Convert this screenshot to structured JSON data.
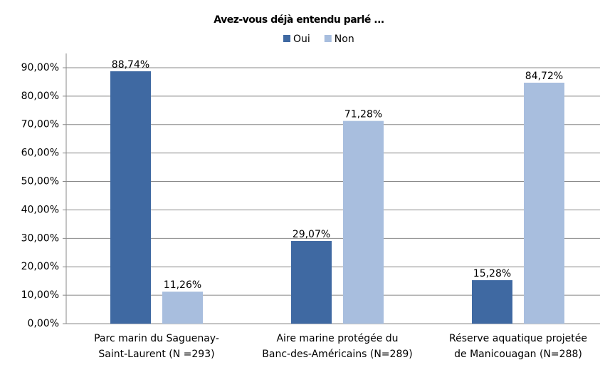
{
  "chart_data": {
    "type": "bar",
    "title": "Avez-vous déjà entendu parlé ...",
    "categories": [
      [
        "Parc marin du Saguenay-",
        "Saint-Laurent (N =293)"
      ],
      [
        "Aire marine protégée du",
        "Banc-des-Américains (N=289)"
      ],
      [
        "Réserve aquatique projetée",
        "de Manicouagan (N=288)"
      ]
    ],
    "series": [
      {
        "name": "Oui",
        "color": "#3f69a2",
        "values": [
          88.74,
          29.07,
          15.28
        ],
        "value_labels": [
          "88,74%",
          "29,07%",
          "15,28%"
        ]
      },
      {
        "name": "Non",
        "color": "#a8bede",
        "values": [
          11.26,
          71.28,
          84.72
        ],
        "value_labels": [
          "11,26%",
          "71,28%",
          "84,72%"
        ]
      }
    ],
    "ylim": [
      0,
      95
    ],
    "yticks": [
      {
        "value": 0,
        "label": "0,00%"
      },
      {
        "value": 10,
        "label": "10,00%"
      },
      {
        "value": 20,
        "label": "20,00%"
      },
      {
        "value": 30,
        "label": "30,00%"
      },
      {
        "value": 40,
        "label": "40,00%"
      },
      {
        "value": 50,
        "label": "50,00%"
      },
      {
        "value": 60,
        "label": "60,00%"
      },
      {
        "value": 70,
        "label": "70,00%"
      },
      {
        "value": 80,
        "label": "80,00%"
      },
      {
        "value": 90,
        "label": "90,00%"
      }
    ],
    "grid": true,
    "legend": "top"
  }
}
